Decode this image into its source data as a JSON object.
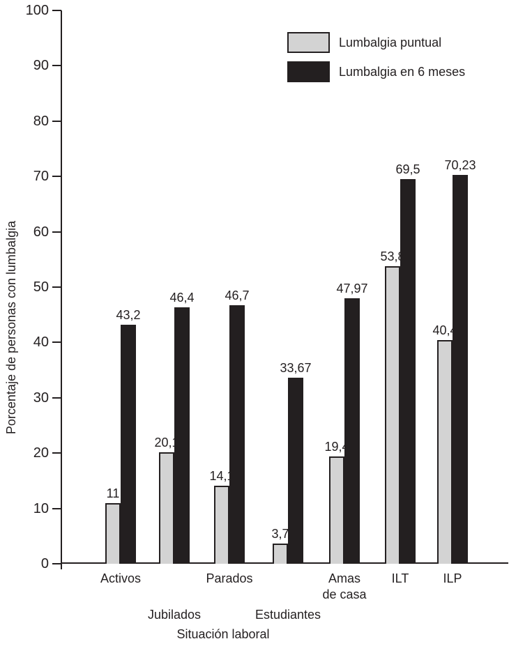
{
  "figure": {
    "y_axis_title": "Porcentaje de personas con lumbalgia",
    "x_axis_title": "Situación laboral"
  },
  "legend": {
    "items": [
      {
        "label": "Lumbalgia puntual",
        "color": "#d3d3d3"
      },
      {
        "label": "Lumbalgia en 6 meses",
        "color": "#231f20"
      }
    ]
  },
  "chart_data": {
    "type": "bar",
    "title": "",
    "xlabel": "Situación laboral",
    "ylabel": "Porcentaje de personas con lumbalgia",
    "ylim": [
      0,
      100
    ],
    "yticks": [
      0,
      10,
      20,
      30,
      40,
      50,
      60,
      70,
      80,
      90,
      100
    ],
    "grid": false,
    "legend_position": "top-right",
    "decimal_separator": ",",
    "categories": [
      "Activos",
      "Jubilados",
      "Parados",
      "Estudiantes",
      "Amas de casa",
      "ILT",
      "ILP"
    ],
    "category_label_lines": [
      [
        "Activos"
      ],
      [
        "Jubilados"
      ],
      [
        "Parados"
      ],
      [
        "Estudiantes"
      ],
      [
        "Amas",
        "de casa"
      ],
      [
        "ILT"
      ],
      [
        "ILP"
      ]
    ],
    "category_label_row": [
      1,
      2,
      1,
      2,
      1,
      1,
      1
    ],
    "series": [
      {
        "name": "Lumbalgia puntual",
        "color": "#d3d3d3",
        "values": [
          11,
          20.1,
          14.1,
          3.7,
          19.4,
          53.8,
          40.4
        ],
        "value_labels": [
          "11",
          "20,1",
          "14,1",
          "3,7",
          "19,4",
          "53,8",
          "40,4"
        ]
      },
      {
        "name": "Lumbalgia en 6 meses",
        "color": "#231f20",
        "values": [
          43.2,
          46.4,
          46.7,
          33.67,
          47.97,
          69.5,
          70.23
        ],
        "value_labels": [
          "43,2",
          "46,4",
          "46,7",
          "33,67",
          "47,97",
          "69,5",
          "70,23"
        ]
      }
    ]
  }
}
